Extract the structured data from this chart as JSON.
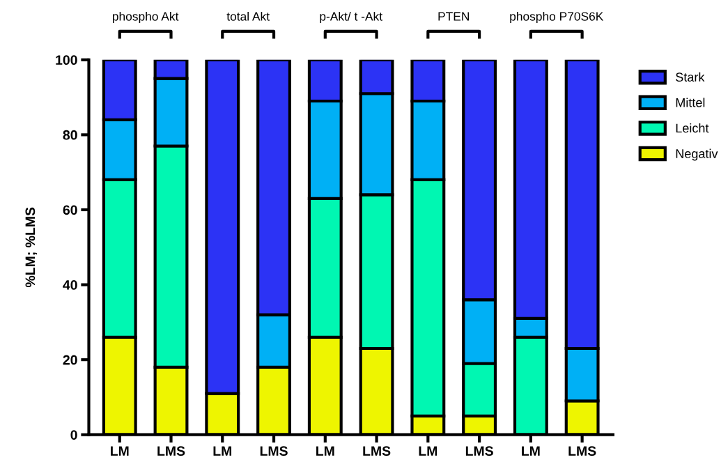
{
  "chart_data": {
    "type": "bar",
    "stacked": true,
    "ylabel": "%LM; %LMS",
    "categories": [
      "LM",
      "LMS",
      "LM",
      "LMS",
      "LM",
      "LMS",
      "LM",
      "LMS",
      "LM",
      "LMS"
    ],
    "series": [
      {
        "name": "Negativ",
        "color": "#eef500",
        "values": [
          26,
          18,
          11,
          18,
          26,
          23,
          5,
          5,
          0,
          9
        ]
      },
      {
        "name": "Leicht",
        "color": "#00f7b2",
        "values": [
          42,
          59,
          0,
          0,
          37,
          41,
          63,
          14,
          26,
          0
        ]
      },
      {
        "name": "Mittel",
        "color": "#00b0f5",
        "values": [
          16,
          18,
          0,
          14,
          26,
          27,
          21,
          17,
          5,
          14
        ]
      },
      {
        "name": "Stark",
        "color": "#2c33f5",
        "values": [
          16,
          5,
          89,
          68,
          11,
          9,
          11,
          64,
          69,
          77
        ]
      }
    ],
    "annotations": [
      "phospho Akt",
      "total Akt",
      "p-Akt/ t -Akt",
      "PTEN",
      "phospho P70S6K"
    ],
    "ylim": [
      0,
      100
    ],
    "yticks": [
      0,
      20,
      40,
      60,
      80,
      100
    ],
    "grid": false,
    "legend": "right"
  }
}
